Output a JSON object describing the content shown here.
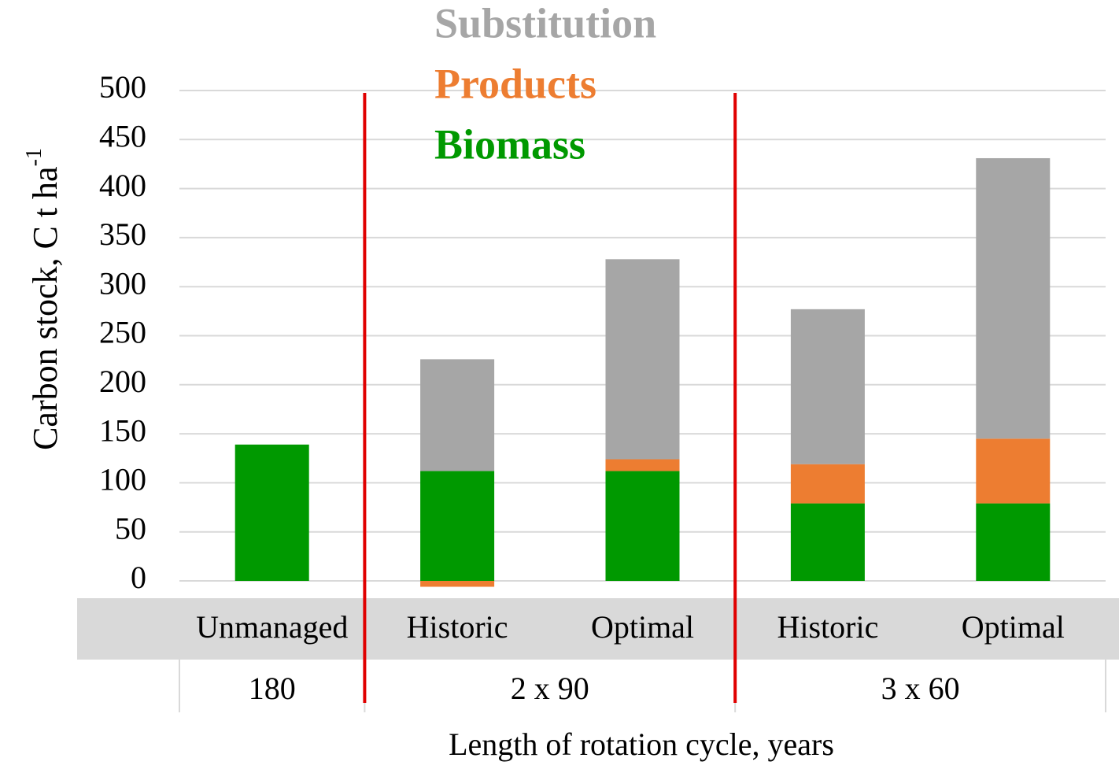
{
  "chart_data": {
    "type": "stacked_bar",
    "y_label": {
      "text": "Carbon stock, C t ha",
      "superscript": "-1"
    },
    "x_label": "Length of rotation cycle, years",
    "categories": [
      "Unmanaged",
      "Historic",
      "Optimal",
      "Historic",
      "Optimal"
    ],
    "groups": [
      {
        "label": "180",
        "count": 1
      },
      {
        "label": "2 x 90",
        "count": 2
      },
      {
        "label": "3 x 60",
        "count": 2
      }
    ],
    "series": [
      {
        "name": "Biomass",
        "color": "#009900",
        "values": [
          139,
          112,
          112,
          79,
          79
        ]
      },
      {
        "name": "Products",
        "color": "#ed7d31",
        "values": [
          0,
          -6,
          12,
          40,
          66
        ]
      },
      {
        "name": "Substitution",
        "color": "#a6a6a6",
        "values": [
          0,
          114,
          204,
          158,
          286
        ]
      }
    ],
    "ylim": [
      0,
      500
    ],
    "yticks": [
      0,
      50,
      100,
      150,
      200,
      250,
      300,
      350,
      400,
      450,
      500
    ],
    "grid": true,
    "separator_color": "#e00000"
  }
}
